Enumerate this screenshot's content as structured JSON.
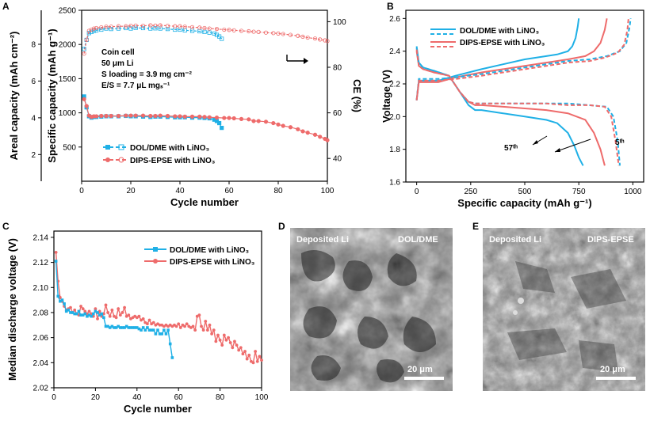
{
  "figure": {
    "panels": [
      "A",
      "B",
      "C",
      "D",
      "E"
    ]
  },
  "colors": {
    "dol": "#1fb0e6",
    "dips": "#ee6b6b"
  },
  "chart_data": [
    {
      "id": "A",
      "type": "scatter",
      "xlabel": "Cycle number",
      "ylabel_left": "Specific capacity (mAh g⁻¹)",
      "ylabel_left2": "Areal capacity (mAh cm⁻²)",
      "ylabel_right": "CE (%)",
      "xlim": [
        0,
        100
      ],
      "ylim": [
        0,
        2500
      ],
      "y2lim": [
        30,
        105
      ],
      "xticks": [
        "0",
        "20",
        "40",
        "60",
        "80",
        "100"
      ],
      "yticks": [
        "500",
        "1000",
        "1500",
        "2000",
        "2500"
      ],
      "areal_ticks": [
        "2",
        "4",
        "6",
        "8"
      ],
      "ce_ticks": [
        "40",
        "60",
        "80",
        "100"
      ],
      "annotation": [
        "Coin cell",
        "50 μm Li",
        "S loading = 3.9 mg cm⁻²",
        "E/S = 7.7 μL mgₛ⁻¹"
      ],
      "legend": [
        "DOL/DME with LiNO₃",
        "DIPS-EPSE with LiNO₃"
      ],
      "series": [
        {
          "name": "DOL/DME capacity",
          "key": "dol",
          "x": [
            1,
            2,
            3,
            4,
            5,
            6,
            8,
            10,
            12,
            15,
            18,
            20,
            22,
            25,
            28,
            30,
            32,
            35,
            38,
            40,
            42,
            45,
            48,
            50,
            52,
            54,
            55,
            56,
            57
          ],
          "y": [
            1240,
            1080,
            950,
            930,
            940,
            940,
            945,
            950,
            950,
            950,
            955,
            950,
            950,
            945,
            940,
            945,
            945,
            940,
            935,
            935,
            935,
            930,
            930,
            925,
            920,
            900,
            880,
            850,
            780
          ]
        },
        {
          "name": "DIPS-EPSE capacity",
          "key": "dips",
          "x": [
            1,
            2,
            3,
            4,
            5,
            6,
            8,
            10,
            12,
            15,
            18,
            20,
            22,
            25,
            28,
            30,
            32,
            35,
            38,
            40,
            42,
            45,
            48,
            50,
            52,
            55,
            58,
            60,
            62,
            65,
            68,
            70,
            72,
            75,
            78,
            80,
            82,
            85,
            88,
            90,
            92,
            95,
            97,
            99,
            100
          ],
          "y": [
            1200,
            1100,
            960,
            940,
            950,
            950,
            955,
            955,
            955,
            955,
            960,
            960,
            960,
            960,
            955,
            955,
            960,
            955,
            950,
            950,
            945,
            945,
            945,
            940,
            935,
            930,
            925,
            925,
            920,
            910,
            905,
            880,
            880,
            870,
            850,
            830,
            810,
            790,
            760,
            730,
            710,
            680,
            650,
            620,
            600
          ]
        },
        {
          "name": "DOL/DME CE",
          "key": "dol",
          "x": [
            1,
            2,
            3,
            4,
            5,
            6,
            8,
            10,
            12,
            15,
            18,
            20,
            22,
            25,
            28,
            30,
            32,
            35,
            38,
            40,
            42,
            45,
            48,
            50,
            52,
            54,
            55,
            56,
            57
          ],
          "y": [
            88,
            92,
            95,
            95.5,
            96,
            96.2,
            96.5,
            97,
            96.8,
            97,
            97.2,
            97,
            97.3,
            97.2,
            97,
            97.1,
            97,
            96.8,
            96.5,
            96.5,
            96.2,
            96,
            95.8,
            95.5,
            95.2,
            94.8,
            94.2,
            93.5,
            92.5
          ]
        },
        {
          "name": "DIPS-EPSE CE",
          "key": "dips",
          "x": [
            1,
            2,
            3,
            4,
            5,
            6,
            8,
            10,
            12,
            15,
            18,
            20,
            22,
            25,
            28,
            30,
            32,
            35,
            38,
            40,
            42,
            45,
            48,
            50,
            52,
            55,
            58,
            60,
            62,
            65,
            68,
            70,
            72,
            75,
            78,
            80,
            82,
            85,
            88,
            90,
            92,
            95,
            97,
            99,
            100
          ],
          "y": [
            86,
            92,
            96,
            96.5,
            97,
            97.2,
            97.5,
            97.8,
            97.8,
            98,
            98,
            98.2,
            98.3,
            98.2,
            98.4,
            98.3,
            98.4,
            98.2,
            98,
            98,
            97.8,
            97.6,
            97.4,
            97.2,
            97,
            96.8,
            96.5,
            96.4,
            96.2,
            96,
            95.8,
            95.6,
            95.5,
            95.2,
            95,
            94.8,
            94.6,
            94.2,
            93.8,
            93.4,
            93,
            92.6,
            92.2,
            91.8,
            91.5
          ]
        }
      ]
    },
    {
      "id": "B",
      "type": "line",
      "xlabel": "Specific capacity (mAh g⁻¹)",
      "ylabel": "Voltage (V)",
      "xlim": [
        -50,
        1050
      ],
      "ylim": [
        1.6,
        2.65
      ],
      "xticks": [
        "0",
        "250",
        "500",
        "750",
        "1000"
      ],
      "yticks": [
        "1.6",
        "1.8",
        "2.0",
        "2.2",
        "2.4",
        "2.6"
      ],
      "legend": [
        "DOL/DME with LiNO₃",
        "DIPS-EPSE with LiNO₃"
      ],
      "labels": {
        "cycle57": "57ᵗʰ",
        "cycle5": "5ᵗʰ"
      },
      "series": [
        {
          "name": "DOL/DME 57th discharge",
          "key": "dol",
          "dash": false,
          "x": [
            0,
            10,
            30,
            80,
            150,
            200,
            240,
            270,
            300,
            400,
            500,
            600,
            650,
            700,
            730,
            750,
            770
          ],
          "y": [
            2.43,
            2.33,
            2.3,
            2.28,
            2.25,
            2.15,
            2.07,
            2.04,
            2.04,
            2.02,
            2.0,
            1.98,
            1.96,
            1.9,
            1.82,
            1.75,
            1.7
          ]
        },
        {
          "name": "DOL/DME 57th charge",
          "key": "dol",
          "dash": false,
          "x": [
            0,
            10,
            30,
            100,
            180,
            300,
            400,
            500,
            600,
            650,
            700,
            720,
            735,
            745,
            750
          ],
          "y": [
            2.1,
            2.22,
            2.22,
            2.22,
            2.25,
            2.29,
            2.32,
            2.35,
            2.37,
            2.38,
            2.4,
            2.43,
            2.48,
            2.55,
            2.6
          ]
        },
        {
          "name": "DIPS-EPSE 57th discharge",
          "key": "dips",
          "dash": false,
          "x": [
            0,
            10,
            30,
            80,
            150,
            200,
            240,
            270,
            300,
            400,
            500,
            600,
            700,
            780,
            820,
            850,
            870
          ],
          "y": [
            2.4,
            2.31,
            2.29,
            2.27,
            2.25,
            2.15,
            2.09,
            2.07,
            2.07,
            2.06,
            2.05,
            2.04,
            2.02,
            1.98,
            1.9,
            1.8,
            1.7
          ]
        },
        {
          "name": "DIPS-EPSE 57th charge",
          "key": "dips",
          "dash": false,
          "x": [
            0,
            10,
            30,
            100,
            180,
            300,
            400,
            500,
            600,
            700,
            780,
            820,
            850,
            870,
            880
          ],
          "y": [
            2.1,
            2.21,
            2.21,
            2.21,
            2.24,
            2.27,
            2.29,
            2.31,
            2.33,
            2.35,
            2.37,
            2.4,
            2.45,
            2.53,
            2.6
          ]
        },
        {
          "name": "DOL/DME 5th discharge",
          "key": "dol",
          "dash": true,
          "x": [
            0,
            10,
            30,
            80,
            150,
            200,
            240,
            270,
            300,
            400,
            500,
            600,
            700,
            800,
            880,
            910,
            930,
            940
          ],
          "y": [
            2.42,
            2.32,
            2.3,
            2.28,
            2.25,
            2.15,
            2.09,
            2.08,
            2.08,
            2.08,
            2.08,
            2.08,
            2.08,
            2.07,
            2.06,
            2.0,
            1.85,
            1.7
          ]
        },
        {
          "name": "DOL/DME 5th charge",
          "key": "dol",
          "dash": true,
          "x": [
            0,
            10,
            30,
            100,
            180,
            300,
            400,
            500,
            600,
            700,
            800,
            880,
            940,
            970,
            985,
            990
          ],
          "y": [
            2.1,
            2.23,
            2.23,
            2.23,
            2.24,
            2.26,
            2.28,
            2.3,
            2.32,
            2.34,
            2.35,
            2.37,
            2.4,
            2.45,
            2.55,
            2.6
          ]
        },
        {
          "name": "DIPS-EPSE 5th discharge",
          "key": "dips",
          "dash": true,
          "x": [
            0,
            10,
            30,
            80,
            150,
            200,
            240,
            270,
            300,
            400,
            500,
            600,
            700,
            800,
            870,
            900,
            920,
            935
          ],
          "y": [
            2.41,
            2.31,
            2.29,
            2.27,
            2.25,
            2.15,
            2.09,
            2.08,
            2.08,
            2.08,
            2.08,
            2.08,
            2.07,
            2.07,
            2.06,
            2.0,
            1.85,
            1.7
          ]
        },
        {
          "name": "DIPS-EPSE 5th charge",
          "key": "dips",
          "dash": true,
          "x": [
            0,
            10,
            30,
            100,
            180,
            300,
            400,
            500,
            600,
            700,
            800,
            870,
            930,
            960,
            975,
            980
          ],
          "y": [
            2.1,
            2.22,
            2.22,
            2.22,
            2.23,
            2.25,
            2.27,
            2.29,
            2.31,
            2.33,
            2.34,
            2.36,
            2.39,
            2.44,
            2.53,
            2.6
          ]
        }
      ]
    },
    {
      "id": "C",
      "type": "line",
      "xlabel": "Cycle number",
      "ylabel": "Median discharge voltage (V)",
      "xlim": [
        0,
        100
      ],
      "ylim": [
        2.02,
        2.145
      ],
      "xticks": [
        "0",
        "20",
        "40",
        "60",
        "80",
        "100"
      ],
      "yticks": [
        "2.02",
        "2.04",
        "2.06",
        "2.08",
        "2.10",
        "2.12",
        "2.14"
      ],
      "legend": [
        "DOL/DME with LiNO₃",
        "DIPS-EPSE with LiNO₃"
      ],
      "series": [
        {
          "name": "DOL/DME with LiNO₃",
          "key": "dol",
          "x": [
            1,
            2,
            3,
            4,
            5,
            6,
            7,
            8,
            9,
            10,
            11,
            12,
            13,
            14,
            15,
            16,
            17,
            18,
            19,
            20,
            21,
            22,
            23,
            24,
            25,
            26,
            27,
            28,
            29,
            30,
            31,
            32,
            33,
            34,
            35,
            36,
            37,
            38,
            39,
            40,
            41,
            42,
            43,
            44,
            45,
            46,
            47,
            48,
            49,
            50,
            51,
            52,
            53,
            54,
            55,
            56,
            57
          ],
          "y": [
            2.121,
            2.093,
            2.089,
            2.09,
            2.087,
            2.081,
            2.082,
            2.08,
            2.08,
            2.079,
            2.079,
            2.081,
            2.078,
            2.078,
            2.079,
            2.077,
            2.078,
            2.077,
            2.079,
            2.081,
            2.08,
            2.078,
            2.079,
            2.076,
            2.069,
            2.069,
            2.068,
            2.069,
            2.068,
            2.068,
            2.069,
            2.068,
            2.068,
            2.068,
            2.069,
            2.068,
            2.068,
            2.068,
            2.068,
            2.068,
            2.067,
            2.066,
            2.068,
            2.066,
            2.068,
            2.066,
            2.066,
            2.066,
            2.063,
            2.066,
            2.063,
            2.063,
            2.066,
            2.063,
            2.066,
            2.055,
            2.044
          ]
        },
        {
          "name": "DIPS-EPSE with LiNO₃",
          "key": "dips",
          "x": [
            1,
            2,
            3,
            4,
            5,
            6,
            7,
            8,
            9,
            10,
            11,
            12,
            13,
            14,
            15,
            16,
            17,
            18,
            19,
            20,
            21,
            22,
            23,
            24,
            25,
            26,
            27,
            28,
            29,
            30,
            31,
            32,
            33,
            34,
            35,
            36,
            37,
            38,
            39,
            40,
            41,
            42,
            43,
            44,
            45,
            46,
            47,
            48,
            49,
            50,
            51,
            52,
            53,
            54,
            55,
            56,
            57,
            58,
            59,
            60,
            61,
            62,
            63,
            64,
            65,
            66,
            67,
            68,
            69,
            70,
            71,
            72,
            73,
            74,
            75,
            76,
            77,
            78,
            79,
            80,
            81,
            82,
            83,
            84,
            85,
            86,
            87,
            88,
            89,
            90,
            91,
            92,
            93,
            94,
            95,
            96,
            97,
            98,
            99,
            100
          ],
          "y": [
            2.128,
            2.105,
            2.092,
            2.089,
            2.085,
            2.082,
            2.083,
            2.084,
            2.08,
            2.082,
            2.079,
            2.078,
            2.085,
            2.083,
            2.081,
            2.079,
            2.081,
            2.079,
            2.077,
            2.083,
            2.075,
            2.081,
            2.077,
            2.079,
            2.086,
            2.08,
            2.077,
            2.082,
            2.077,
            2.076,
            2.083,
            2.078,
            2.08,
            2.084,
            2.077,
            2.078,
            2.075,
            2.076,
            2.077,
            2.076,
            2.077,
            2.074,
            2.075,
            2.072,
            2.071,
            2.074,
            2.071,
            2.072,
            2.07,
            2.071,
            2.07,
            2.07,
            2.069,
            2.07,
            2.069,
            2.07,
            2.069,
            2.07,
            2.069,
            2.071,
            2.068,
            2.07,
            2.069,
            2.071,
            2.069,
            2.068,
            2.069,
            2.066,
            2.077,
            2.078,
            2.069,
            2.066,
            2.073,
            2.066,
            2.07,
            2.063,
            2.066,
            2.057,
            2.062,
            2.058,
            2.054,
            2.062,
            2.058,
            2.06,
            2.056,
            2.052,
            2.057,
            2.054,
            2.05,
            2.052,
            2.047,
            2.049,
            2.043,
            2.046,
            2.041,
            2.04,
            2.049,
            2.041,
            2.045,
            2.042
          ]
        }
      ]
    }
  ],
  "sem": [
    {
      "id": "D",
      "left_label": "Deposited Li",
      "right_label": "DOL/DME",
      "scale_label": "20 μm"
    },
    {
      "id": "E",
      "left_label": "Deposited Li",
      "right_label": "DIPS-EPSE",
      "scale_label": "20 μm"
    }
  ]
}
